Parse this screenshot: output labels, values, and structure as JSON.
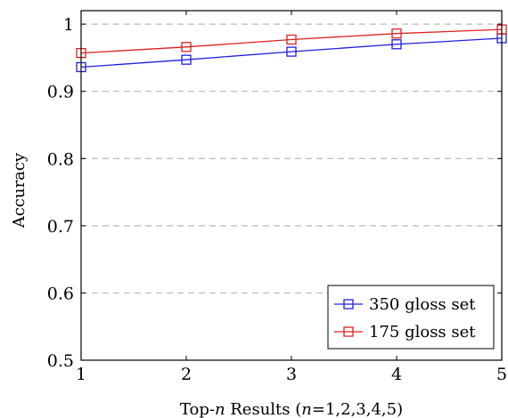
{
  "chart_data": {
    "type": "line",
    "xlabel_parts": {
      "prefix": "Top-",
      "var": "n",
      "middle": " Results (",
      "var2": "n",
      "suffix": "=1,2,3,4,5)"
    },
    "ylabel": "Accuracy",
    "x": [
      1,
      2,
      3,
      4,
      5
    ],
    "x_ticks": [
      "1",
      "2",
      "3",
      "4",
      "5"
    ],
    "y_ticks": [
      "0.5",
      "0.6",
      "0.7",
      "0.8",
      "0.9",
      "1"
    ],
    "y_tick_values": [
      0.5,
      0.6,
      0.7,
      0.8,
      0.9,
      1.0
    ],
    "xlim": [
      1,
      5
    ],
    "ylim": [
      0.5,
      1.02
    ],
    "grid": "horizontal-dashed",
    "legend_position": "bottom-right",
    "series": [
      {
        "name": "350 gloss set",
        "color": "#2020e0",
        "marker": "square",
        "values": [
          0.936,
          0.947,
          0.959,
          0.97,
          0.979
        ]
      },
      {
        "name": "175 gloss set",
        "color": "#e02020",
        "marker": "square",
        "values": [
          0.957,
          0.966,
          0.977,
          0.986,
          0.992
        ]
      }
    ]
  }
}
